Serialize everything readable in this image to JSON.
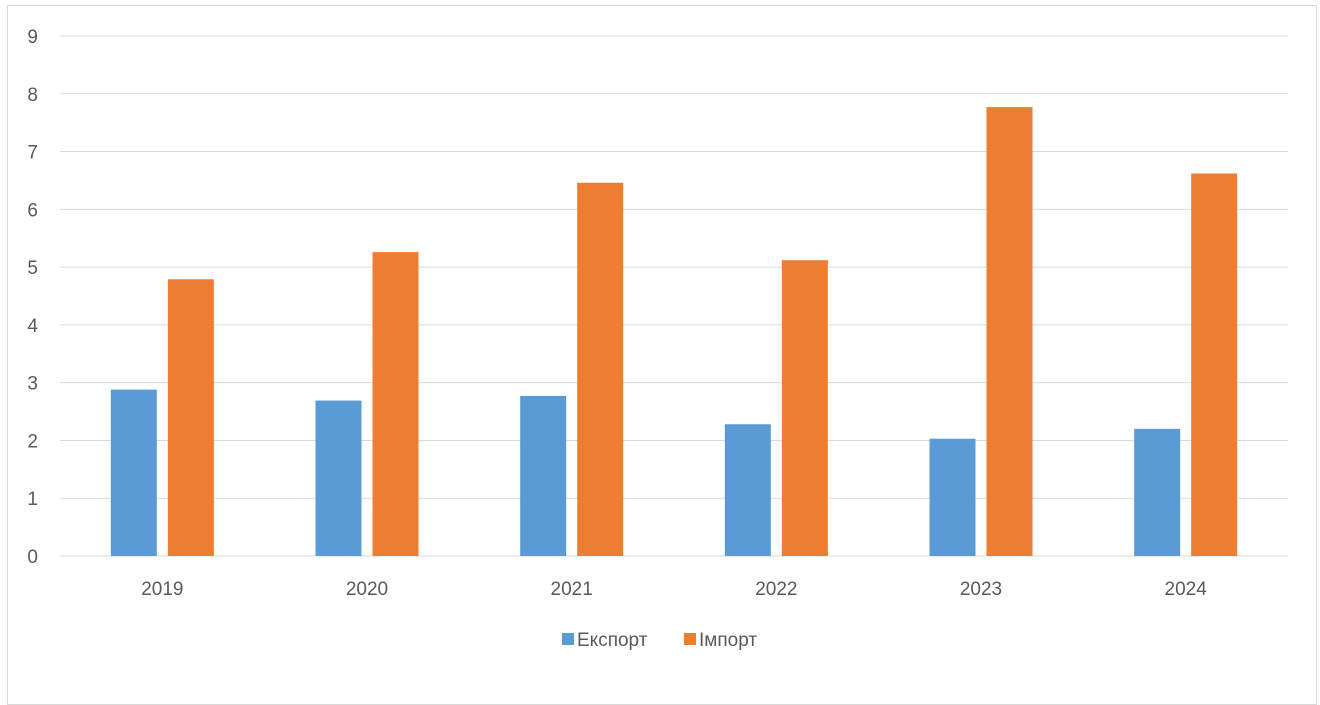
{
  "chart_data": {
    "type": "bar",
    "categories": [
      "2019",
      "2020",
      "2021",
      "2022",
      "2023",
      "2024"
    ],
    "series": [
      {
        "name": "Експорт",
        "color": "#5b9bd5",
        "values": [
          2.88,
          2.69,
          2.77,
          2.28,
          2.03,
          2.2
        ]
      },
      {
        "name": "Імпорт",
        "color": "#ed7d31",
        "values": [
          4.79,
          5.26,
          6.46,
          5.12,
          7.77,
          6.62
        ]
      }
    ],
    "title": "",
    "xlabel": "",
    "ylabel": "",
    "ylim": [
      0,
      9
    ],
    "yticks": [
      "0",
      "1",
      "2",
      "3",
      "4",
      "5",
      "6",
      "7",
      "8",
      "9"
    ],
    "grid": true,
    "gridline_color": "#d9d9d9",
    "legend_position": "bottom"
  }
}
